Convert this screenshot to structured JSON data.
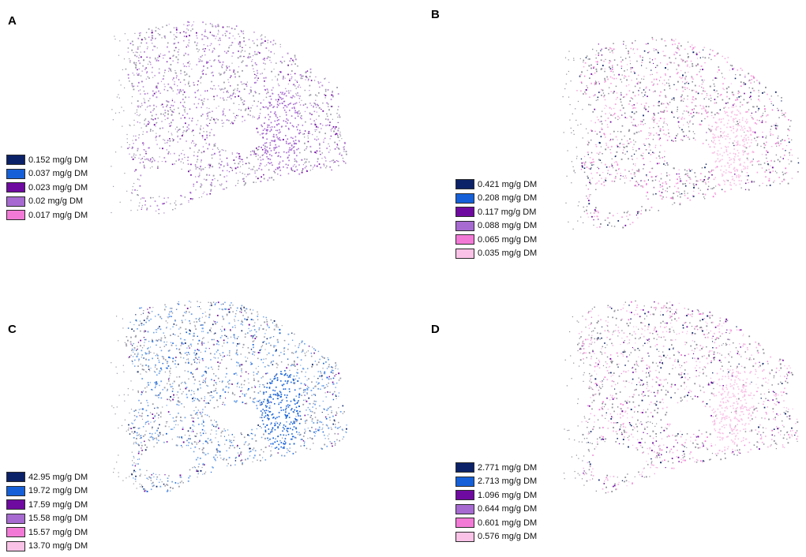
{
  "colors": {
    "navy": "#0b2268",
    "blue": "#1560d8",
    "purple": "#6f0aa0",
    "lavender": "#a66ad0",
    "pink": "#f27ad6",
    "light_pink": "#f9c2e6"
  },
  "panels": [
    {
      "id": "A",
      "letter": "A",
      "legend": [
        {
          "label": "0.152 mg/g DM",
          "color": "#0b2268"
        },
        {
          "label": "0.037 mg/g DM",
          "color": "#1560d8"
        },
        {
          "label": "0.023 mg/g DM",
          "color": "#6f0aa0"
        },
        {
          "label": "0.02 mg/g DM",
          "color": "#a66ad0"
        },
        {
          "label": "0.017 mg/g DM",
          "color": "#f27ad6"
        }
      ]
    },
    {
      "id": "B",
      "letter": "B",
      "legend": [
        {
          "label": "0.421 mg/g DM",
          "color": "#0b2268"
        },
        {
          "label": "0.208 mg/g DM",
          "color": "#1560d8"
        },
        {
          "label": "0.117 mg/g DM",
          "color": "#6f0aa0"
        },
        {
          "label": "0.088 mg/g DM",
          "color": "#a66ad0"
        },
        {
          "label": "0.065 mg/g DM",
          "color": "#f27ad6"
        },
        {
          "label": "0.035 mg/g DM",
          "color": "#f9c2e6"
        }
      ]
    },
    {
      "id": "C",
      "letter": "C",
      "legend": [
        {
          "label": "42.95 mg/g DM",
          "color": "#0b2268"
        },
        {
          "label": "19.72 mg/g DM",
          "color": "#1560d8"
        },
        {
          "label": "17.59 mg/g DM",
          "color": "#6f0aa0"
        },
        {
          "label": "15.58 mg/g DM",
          "color": "#a66ad0"
        },
        {
          "label": "15.57 mg/g DM",
          "color": "#f27ad6"
        },
        {
          "label": "13.70 mg/g DM",
          "color": "#f9c2e6"
        }
      ]
    },
    {
      "id": "D",
      "letter": "D",
      "legend": [
        {
          "label": "2.771 mg/g DM",
          "color": "#0b2268"
        },
        {
          "label": "2.713 mg/g DM",
          "color": "#1560d8"
        },
        {
          "label": "1.096 mg/g DM",
          "color": "#6f0aa0"
        },
        {
          "label": "0.644 mg/g DM",
          "color": "#a66ad0"
        },
        {
          "label": "0.601 mg/g DM",
          "color": "#f27ad6"
        },
        {
          "label": "0.576 mg/g DM",
          "color": "#f9c2e6"
        }
      ]
    }
  ]
}
